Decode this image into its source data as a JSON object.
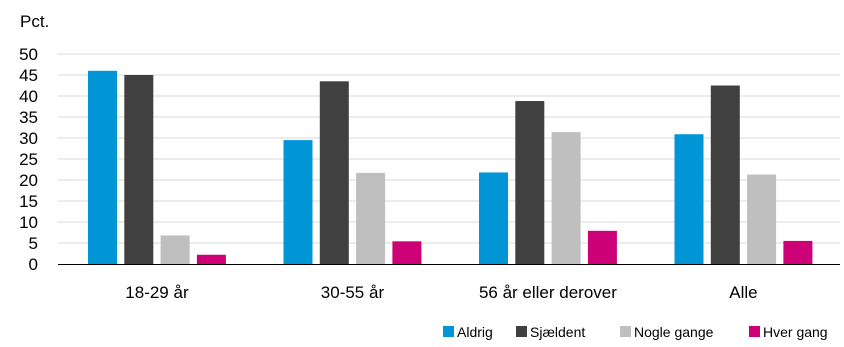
{
  "chart_data": {
    "type": "bar",
    "ylabel": "Pct.",
    "ylim": [
      0,
      50
    ],
    "yticks": [
      0,
      5,
      10,
      15,
      20,
      25,
      30,
      35,
      40,
      45,
      50
    ],
    "grid": true,
    "legend_position": "bottom-right",
    "categories": [
      "18-29 år",
      "30-55 år",
      "56 år eller derover",
      "Alle"
    ],
    "series": [
      {
        "name": "Aldrig",
        "color": "#0096d6",
        "values": [
          46,
          29.5,
          21.8,
          30.9
        ]
      },
      {
        "name": "Sjældent",
        "color": "#404040",
        "values": [
          45,
          43.5,
          38.8,
          42.5
        ]
      },
      {
        "name": "Nogle gange",
        "color": "#bfbfbf",
        "values": [
          6.8,
          21.7,
          31.4,
          21.3
        ]
      },
      {
        "name": "Hver gang",
        "color": "#cc0077",
        "values": [
          2.2,
          5.4,
          7.9,
          5.5
        ]
      }
    ]
  }
}
